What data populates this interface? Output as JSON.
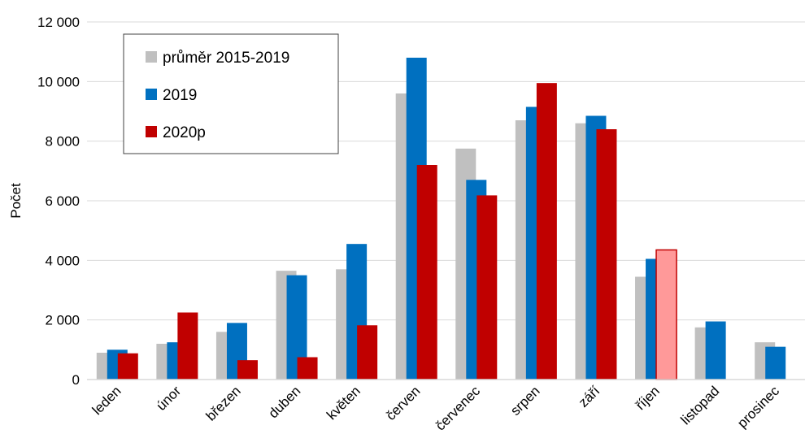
{
  "chart_data": {
    "type": "bar",
    "ylabel": "Počet",
    "xlabel": "",
    "ylim": [
      0,
      12000
    ],
    "yticks": [
      0,
      2000,
      4000,
      6000,
      8000,
      10000,
      12000
    ],
    "ytick_labels": [
      "0",
      "2 000",
      "4 000",
      "6 000",
      "8 000",
      "10 000",
      "12 000"
    ],
    "grid": true,
    "legend_position": "top-left",
    "categories": [
      "leden",
      "únor",
      "březen",
      "duben",
      "květen",
      "červen",
      "červenec",
      "srpen",
      "září",
      "říjen",
      "listopad",
      "prosinec"
    ],
    "series": [
      {
        "name": "průměr 2015-2019",
        "color": "#c0c0c0",
        "values": [
          900,
          1200,
          1600,
          3650,
          3700,
          9600,
          7750,
          8700,
          8600,
          3450,
          1750,
          1250
        ]
      },
      {
        "name": "2019",
        "color": "#0070c0",
        "values": [
          1000,
          1250,
          1900,
          3500,
          4550,
          10800,
          6700,
          9150,
          8850,
          4050,
          1950,
          1100
        ]
      },
      {
        "name": "2020p",
        "color": "#c00000",
        "highlight_color": "#ff9999",
        "highlight_index": 9,
        "values": [
          880,
          2250,
          650,
          750,
          1820,
          7200,
          6180,
          9950,
          8400,
          4350,
          null,
          null
        ]
      }
    ]
  }
}
